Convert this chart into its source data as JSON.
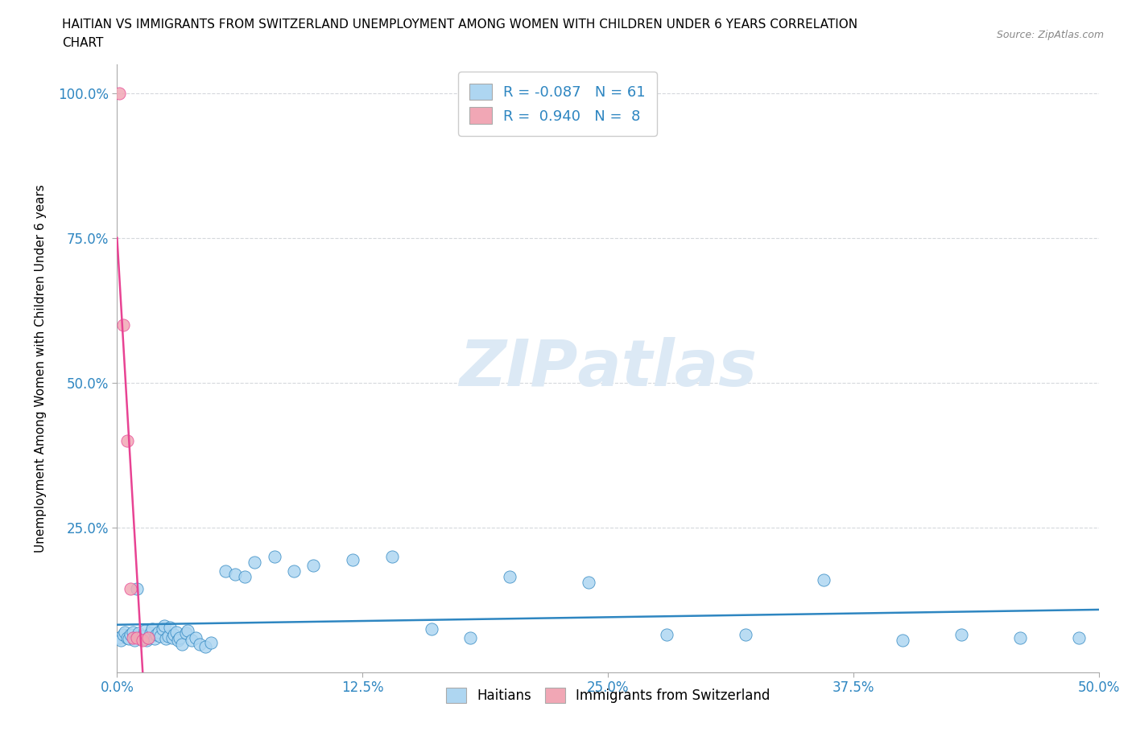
{
  "title_line1": "HAITIAN VS IMMIGRANTS FROM SWITZERLAND UNEMPLOYMENT AMONG WOMEN WITH CHILDREN UNDER 6 YEARS CORRELATION",
  "title_line2": "CHART",
  "source_text": "Source: ZipAtlas.com",
  "xlabel": "",
  "ylabel": "Unemployment Among Women with Children Under 6 years",
  "xlim": [
    0.0,
    0.5
  ],
  "ylim": [
    0.0,
    1.05
  ],
  "xtick_labels": [
    "0.0%",
    "12.5%",
    "25.0%",
    "37.5%",
    "50.0%"
  ],
  "xtick_vals": [
    0.0,
    0.125,
    0.25,
    0.375,
    0.5
  ],
  "ytick_labels": [
    "25.0%",
    "50.0%",
    "75.0%",
    "100.0%"
  ],
  "ytick_vals": [
    0.25,
    0.5,
    0.75,
    1.0
  ],
  "haitians_color": "#aed6f1",
  "swiss_color": "#f1a7b5",
  "trend_haitian_color": "#2e86c1",
  "trend_swiss_color": "#e84393",
  "watermark_color": "#dce9f5",
  "legend_r_haitian": "-0.087",
  "legend_n_haitian": "61",
  "legend_r_swiss": "0.940",
  "legend_n_swiss": "8",
  "haitian_x": [
    0.001,
    0.002,
    0.003,
    0.004,
    0.005,
    0.006,
    0.007,
    0.008,
    0.009,
    0.01,
    0.011,
    0.012,
    0.013,
    0.014,
    0.015,
    0.016,
    0.017,
    0.018,
    0.019,
    0.02,
    0.021,
    0.022,
    0.023,
    0.024,
    0.025,
    0.026,
    0.027,
    0.028,
    0.029,
    0.03,
    0.031,
    0.032,
    0.033,
    0.035,
    0.036,
    0.038,
    0.04,
    0.042,
    0.045,
    0.048,
    0.055,
    0.06,
    0.065,
    0.07,
    0.08,
    0.09,
    0.1,
    0.12,
    0.14,
    0.16,
    0.18,
    0.2,
    0.24,
    0.28,
    0.32,
    0.36,
    0.4,
    0.43,
    0.46,
    0.49,
    0.01
  ],
  "haitian_y": [
    0.06,
    0.055,
    0.065,
    0.07,
    0.06,
    0.058,
    0.065,
    0.07,
    0.055,
    0.062,
    0.068,
    0.058,
    0.063,
    0.072,
    0.055,
    0.06,
    0.068,
    0.075,
    0.058,
    0.065,
    0.07,
    0.062,
    0.075,
    0.08,
    0.058,
    0.063,
    0.078,
    0.06,
    0.065,
    0.07,
    0.055,
    0.06,
    0.048,
    0.068,
    0.072,
    0.055,
    0.06,
    0.048,
    0.045,
    0.052,
    0.175,
    0.17,
    0.165,
    0.19,
    0.2,
    0.175,
    0.185,
    0.195,
    0.2,
    0.075,
    0.06,
    0.165,
    0.155,
    0.065,
    0.065,
    0.16,
    0.055,
    0.065,
    0.06,
    0.06,
    0.145
  ],
  "swiss_x": [
    0.001,
    0.003,
    0.005,
    0.007,
    0.008,
    0.01,
    0.013,
    0.016
  ],
  "swiss_y": [
    1.0,
    0.6,
    0.4,
    0.145,
    0.06,
    0.06,
    0.055,
    0.06
  ],
  "background_color": "#ffffff",
  "plot_bg_color": "#ffffff",
  "grid_color": "#d5d8dc"
}
